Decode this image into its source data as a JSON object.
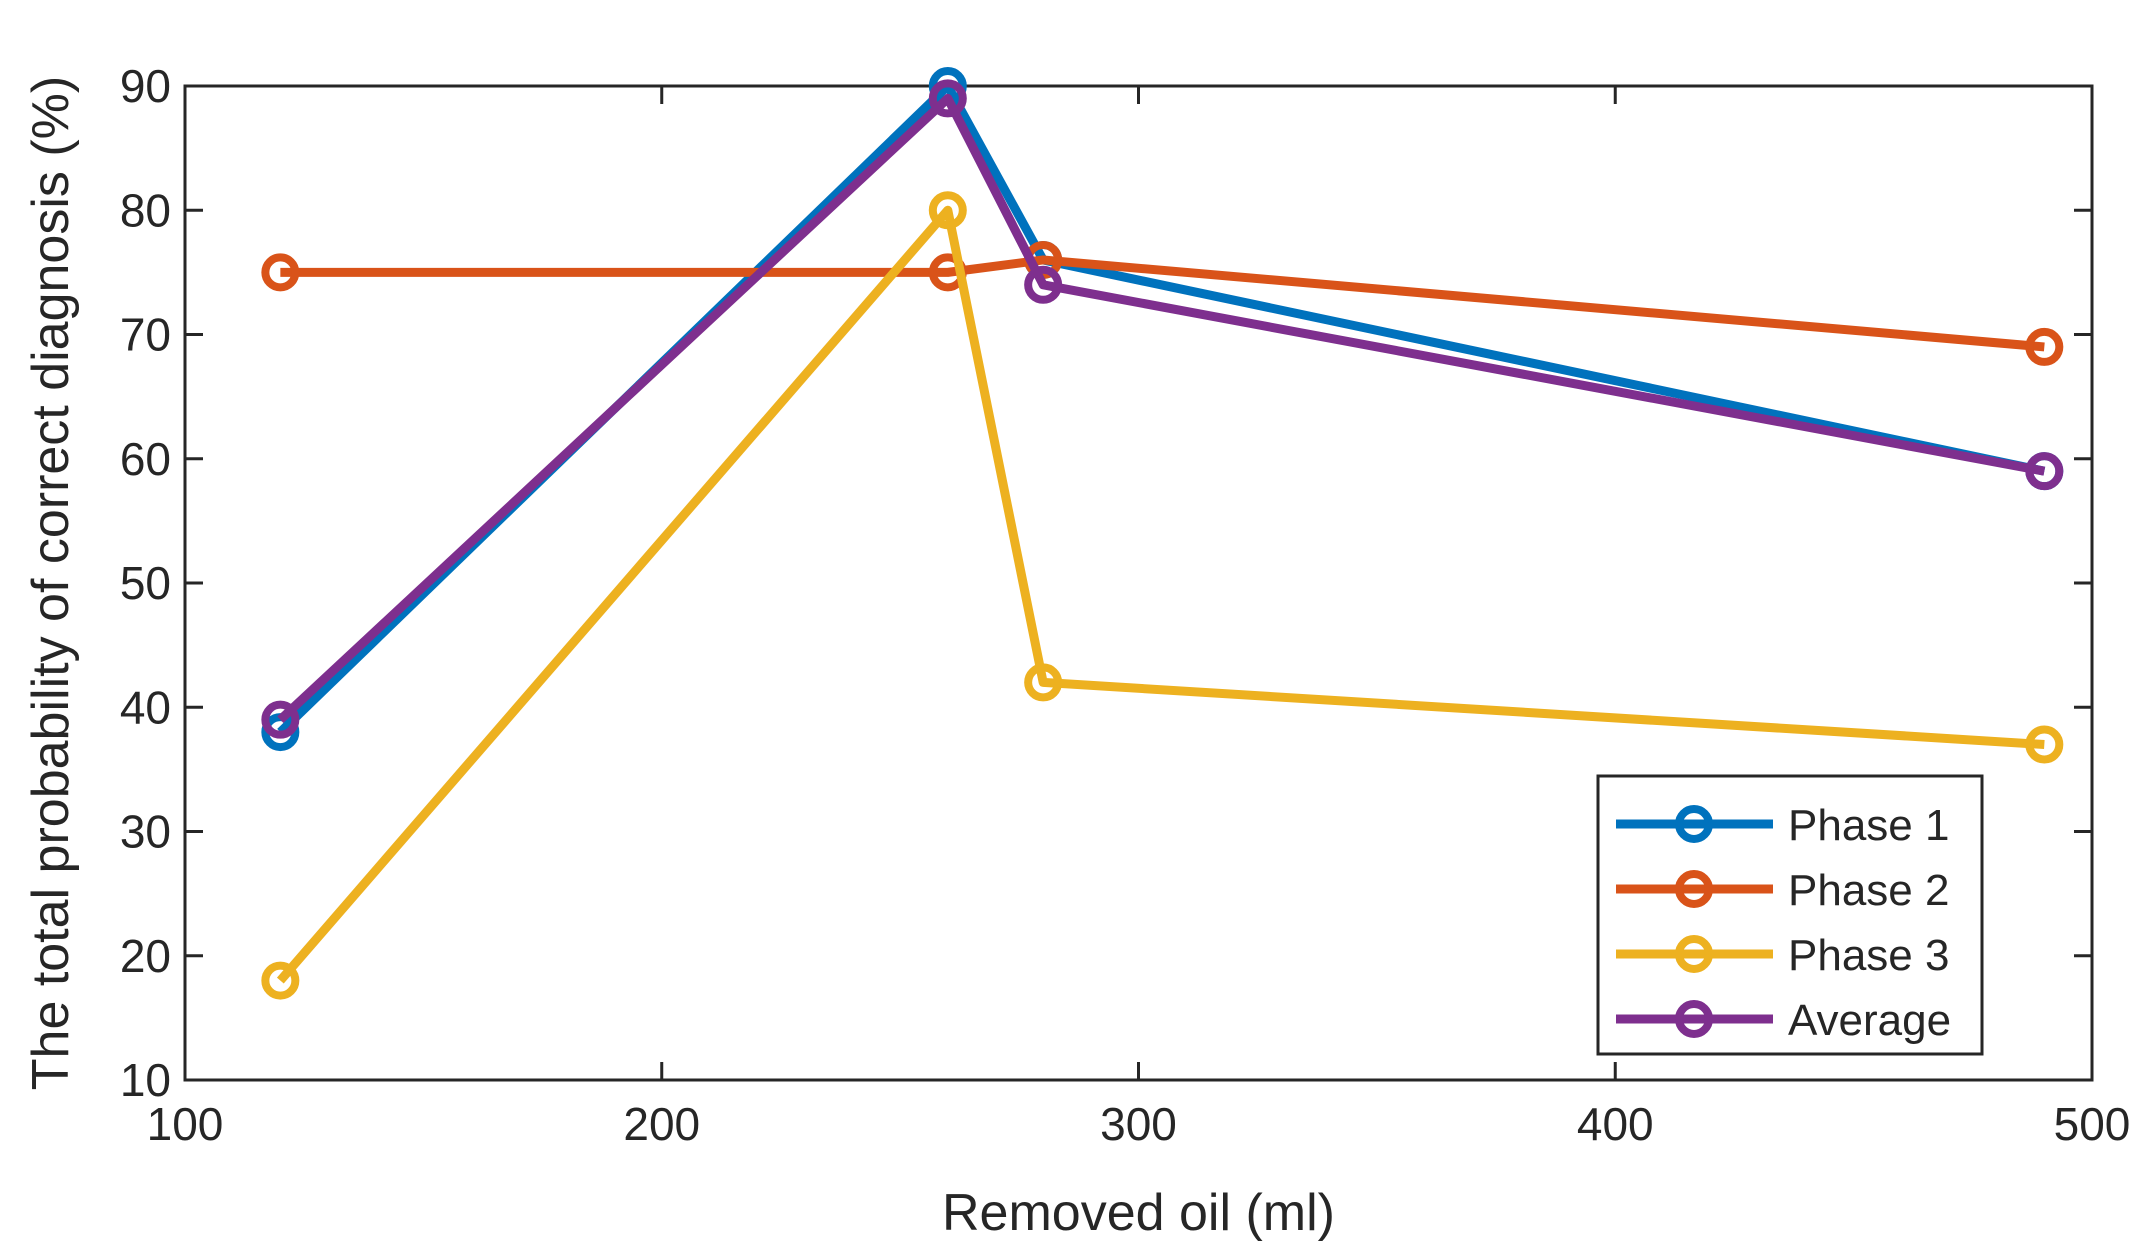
{
  "chart_data": {
    "type": "line",
    "title": "",
    "xlabel": "Removed oil (ml)",
    "ylabel": "The total probability of correct diagnosis (%)",
    "xlim": [
      100,
      500
    ],
    "ylim": [
      10,
      90
    ],
    "xticks": [
      100,
      200,
      300,
      400,
      500
    ],
    "yticks": [
      10,
      20,
      30,
      40,
      50,
      60,
      70,
      80,
      90
    ],
    "x": [
      120,
      260,
      280,
      490
    ],
    "grid": false,
    "legend_position": "bottom-right",
    "series": [
      {
        "name": "Phase 1",
        "color": "#0072BD",
        "values": [
          38,
          90,
          76,
          59
        ]
      },
      {
        "name": "Phase 2",
        "color": "#D95319",
        "values": [
          75,
          75,
          76,
          69
        ]
      },
      {
        "name": "Phase 3",
        "color": "#EDB120",
        "values": [
          18,
          80,
          42,
          37
        ]
      },
      {
        "name": "Average",
        "color": "#7E2F8E",
        "values": [
          39,
          89,
          74,
          59
        ]
      }
    ]
  }
}
